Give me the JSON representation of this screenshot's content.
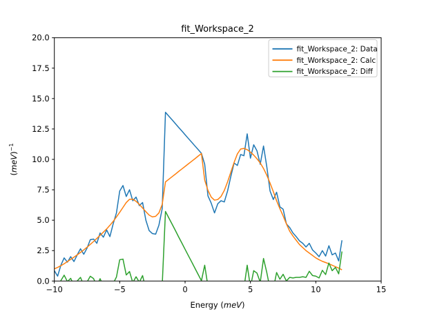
{
  "chart_data": {
    "type": "line",
    "title": "fit_Workspace_2",
    "xlabel": {
      "prefix": "Energy (",
      "italic": "meV",
      "suffix": ")"
    },
    "ylabel": {
      "open": "(",
      "italic": "meV",
      "close": ")",
      "sup": "−1"
    },
    "xlim": [
      -10,
      15
    ],
    "ylim": [
      0,
      20
    ],
    "grid": false,
    "legend_position": "upper right",
    "axis_color": "#000000",
    "xticks": {
      "values": [
        -10,
        -5,
        0,
        5,
        10,
        15
      ],
      "labels": [
        "−10",
        "−5",
        "0",
        "5",
        "10",
        "15"
      ]
    },
    "yticks": {
      "values": [
        0,
        2.5,
        5,
        7.5,
        10,
        12.5,
        15,
        17.5,
        20
      ],
      "labels": [
        "0.0",
        "2.5",
        "5.0",
        "7.5",
        "10.0",
        "12.5",
        "15.0",
        "17.5",
        "20.0"
      ]
    },
    "x": [
      -10,
      -9.75,
      -9.5,
      -9.25,
      -9,
      -8.75,
      -8.5,
      -8.25,
      -8,
      -7.75,
      -7.5,
      -7.25,
      -7,
      -6.75,
      -6.5,
      -6.25,
      -6,
      -5.75,
      -5.5,
      -5.25,
      -5,
      -4.75,
      -4.5,
      -4.25,
      -4,
      -3.75,
      -3.5,
      -3.25,
      -3,
      -2.75,
      -2.5,
      -2.25,
      -2,
      -1.75,
      -1.5,
      -1.25,
      -1,
      -0.75,
      -0.5,
      -0.25,
      0,
      0.25,
      0.5,
      0.75,
      1,
      1.25,
      1.5,
      1.75,
      2,
      2.25,
      2.5,
      2.75,
      3,
      3.25,
      3.5,
      3.75,
      4,
      4.25,
      4.5,
      4.75,
      5,
      5.25,
      5.5,
      5.75,
      6,
      6.25,
      6.5,
      6.75,
      7,
      7.25,
      7.5,
      7.75,
      8,
      8.25,
      8.5,
      8.75,
      9,
      9.25,
      9.5,
      9.75,
      10,
      10.25,
      10.5,
      10.75,
      11,
      11.25,
      11.5,
      11.75,
      12
    ],
    "series": [
      {
        "name": "fit_Workspace_2: Data",
        "key": "data",
        "color": "#1f77b4",
        "values": [
          0.85,
          0.4,
          1.3,
          1.9,
          1.55,
          2.0,
          1.6,
          2.15,
          2.65,
          2.2,
          2.7,
          3.4,
          3.45,
          3.1,
          3.95,
          3.6,
          4.2,
          3.65,
          4.7,
          5.6,
          7.4,
          7.85,
          6.95,
          7.5,
          6.6,
          6.9,
          6.2,
          6.45,
          5.0,
          4.15,
          3.9,
          3.85,
          4.6,
          5.95,
          13.87,
          13.56,
          13.26,
          12.95,
          12.64,
          12.34,
          12.03,
          11.72,
          11.42,
          11.11,
          10.81,
          10.5,
          9.6,
          7.0,
          6.4,
          5.6,
          6.35,
          6.6,
          6.5,
          7.4,
          8.6,
          9.7,
          9.5,
          10.4,
          10.3,
          12.1,
          10.1,
          11.2,
          10.7,
          9.6,
          11.1,
          9.4,
          7.4,
          6.7,
          7.3,
          6.1,
          5.9,
          4.7,
          4.4,
          3.95,
          3.65,
          3.3,
          3.1,
          2.8,
          3.1,
          2.55,
          2.3,
          2.0,
          2.5,
          2.05,
          2.9,
          2.15,
          2.3,
          1.65,
          3.35
        ]
      },
      {
        "name": "fit_Workspace_2: Calc",
        "key": "calc",
        "color": "#ff7f0e",
        "values": [
          1.0,
          1.12,
          1.26,
          1.42,
          1.6,
          1.78,
          1.96,
          2.15,
          2.35,
          2.56,
          2.78,
          3.01,
          3.25,
          3.5,
          3.76,
          4.02,
          4.28,
          4.58,
          4.9,
          5.27,
          5.65,
          6.05,
          6.45,
          6.72,
          6.73,
          6.55,
          6.3,
          6.0,
          5.7,
          5.42,
          5.27,
          5.32,
          5.6,
          6.3,
          8.15,
          8.36,
          8.57,
          8.78,
          9.0,
          9.21,
          9.42,
          9.63,
          9.84,
          10.05,
          10.27,
          10.48,
          8.3,
          7.45,
          6.9,
          6.65,
          6.7,
          6.95,
          7.45,
          8.15,
          8.95,
          9.75,
          10.45,
          10.85,
          10.9,
          10.8,
          10.6,
          10.35,
          10.05,
          9.7,
          9.25,
          8.7,
          8.05,
          7.35,
          6.6,
          5.95,
          5.35,
          4.7,
          4.1,
          3.7,
          3.35,
          3.0,
          2.75,
          2.5,
          2.3,
          2.1,
          1.9,
          1.75,
          1.62,
          1.52,
          1.42,
          1.3,
          1.18,
          1.06,
          0.92
        ]
      },
      {
        "name": "fit_Workspace_2: Diff",
        "key": "diff",
        "color": "#2ca02c",
        "values": [
          -0.15,
          -0.72,
          0.04,
          0.48,
          -0.05,
          0.22,
          -0.36,
          0.0,
          0.3,
          -0.36,
          -0.08,
          0.39,
          0.2,
          -0.4,
          0.19,
          -0.42,
          -0.08,
          -0.93,
          -0.2,
          0.33,
          1.75,
          1.8,
          0.5,
          0.78,
          -0.13,
          0.35,
          -0.1,
          0.45,
          -0.7,
          -1.27,
          -1.37,
          -1.47,
          -1.0,
          -0.35,
          5.72,
          5.2,
          4.69,
          4.17,
          3.64,
          3.13,
          2.61,
          2.09,
          1.58,
          1.06,
          0.54,
          0.02,
          1.3,
          -0.45,
          -0.5,
          -1.05,
          -0.35,
          -0.35,
          -0.95,
          -0.75,
          -0.35,
          -0.05,
          -0.95,
          -0.45,
          -0.6,
          1.3,
          -0.5,
          0.85,
          0.65,
          -0.1,
          1.85,
          0.7,
          -0.65,
          -0.65,
          0.7,
          0.15,
          0.55,
          0.0,
          0.3,
          0.25,
          0.3,
          0.3,
          0.35,
          0.3,
          0.8,
          0.45,
          0.4,
          0.25,
          0.88,
          0.53,
          1.48,
          0.85,
          1.12,
          0.59,
          2.43
        ]
      }
    ]
  }
}
